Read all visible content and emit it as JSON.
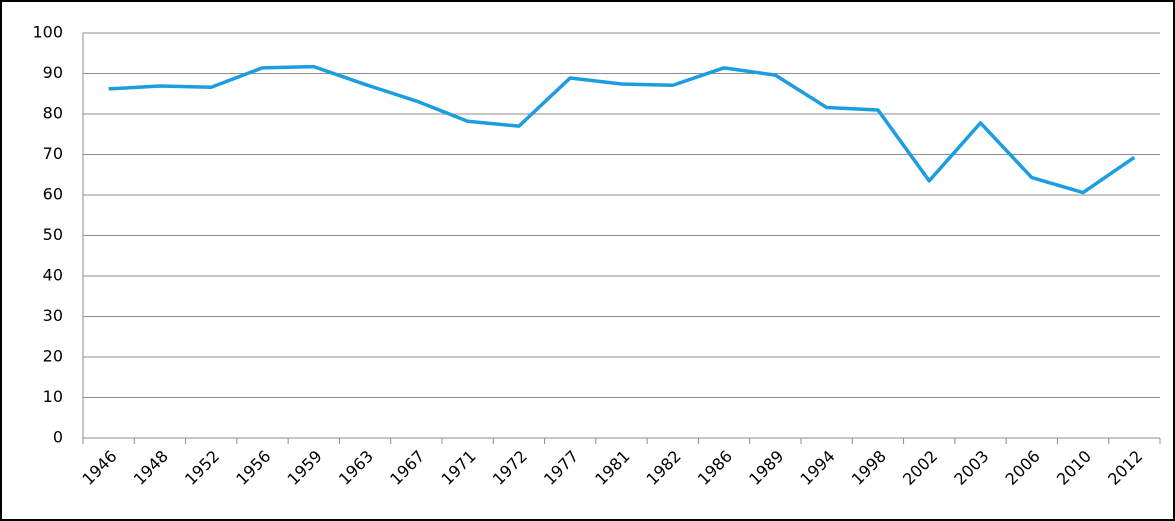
{
  "chart_data": {
    "type": "line",
    "categories": [
      "1946",
      "1948",
      "1952",
      "1956",
      "1959",
      "1963",
      "1967",
      "1971",
      "1972",
      "1977",
      "1981",
      "1982",
      "1986",
      "1989",
      "1994",
      "1998",
      "2002",
      "2003",
      "2006",
      "2010",
      "2012"
    ],
    "series": [
      {
        "color": "#1b9de2",
        "values": [
          86.2,
          86.9,
          86.6,
          91.4,
          91.7,
          87.3,
          83.2,
          78.2,
          77.0,
          88.9,
          87.4,
          87.1,
          91.4,
          89.6,
          81.6,
          81.0,
          63.5,
          77.8,
          64.3,
          60.6,
          69.3
        ]
      }
    ],
    "ylim": [
      0,
      100
    ],
    "yticks": [
      0,
      10,
      20,
      30,
      40,
      50,
      60,
      70,
      80,
      90,
      100
    ],
    "grid": true
  }
}
